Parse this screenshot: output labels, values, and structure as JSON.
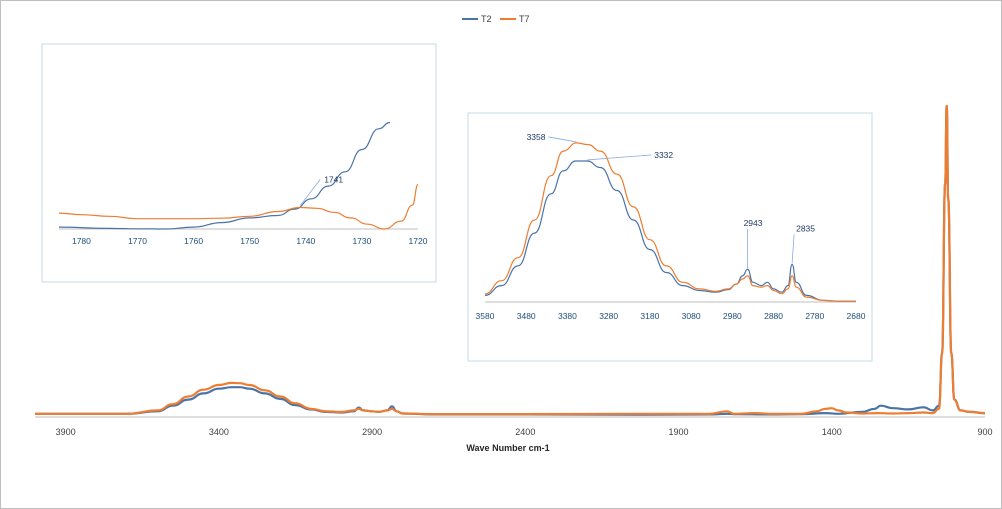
{
  "colors": {
    "T2": "#4a73a8",
    "T7": "#ed7d31",
    "axis": "#bfbfbf",
    "inset_border": "#c5dbe6"
  },
  "legend": {
    "placement": "top-center",
    "entries": [
      "T2",
      "T7"
    ]
  },
  "chart_data": [
    {
      "id": "main",
      "type": "line",
      "xlabel": "Wave Number cm-1",
      "ylabel": "",
      "title": "",
      "xlim": [
        4000,
        900
      ],
      "ylim": [
        0,
        1.0
      ],
      "x_reversed": true,
      "x_ticks": [
        3900,
        3400,
        2900,
        2400,
        1900,
        1400,
        900
      ],
      "grid": false,
      "series": [
        {
          "name": "T2",
          "points": [
            [
              4000,
              0.004
            ],
            [
              3800,
              0.004
            ],
            [
              3700,
              0.004
            ],
            [
              3600,
              0.012
            ],
            [
              3550,
              0.03
            ],
            [
              3500,
              0.05
            ],
            [
              3450,
              0.07
            ],
            [
              3400,
              0.085
            ],
            [
              3358,
              0.09
            ],
            [
              3332,
              0.09
            ],
            [
              3300,
              0.085
            ],
            [
              3250,
              0.07
            ],
            [
              3200,
              0.052
            ],
            [
              3150,
              0.032
            ],
            [
              3100,
              0.018
            ],
            [
              3050,
              0.01
            ],
            [
              3000,
              0.008
            ],
            [
              2960,
              0.012
            ],
            [
              2943,
              0.024
            ],
            [
              2930,
              0.015
            ],
            [
              2900,
              0.012
            ],
            [
              2880,
              0.01
            ],
            [
              2850,
              0.015
            ],
            [
              2835,
              0.028
            ],
            [
              2820,
              0.012
            ],
            [
              2800,
              0.005
            ],
            [
              2700,
              0.002
            ],
            [
              2400,
              0.002
            ],
            [
              2000,
              0.001
            ],
            [
              1800,
              0.002
            ],
            [
              1741,
              0.004
            ],
            [
              1720,
              0.003
            ],
            [
              1600,
              0.002
            ],
            [
              1500,
              0.003
            ],
            [
              1420,
              0.006
            ],
            [
              1380,
              0.004
            ],
            [
              1300,
              0.01
            ],
            [
              1260,
              0.02
            ],
            [
              1240,
              0.03
            ],
            [
              1200,
              0.022
            ],
            [
              1150,
              0.018
            ],
            [
              1100,
              0.025
            ],
            [
              1070,
              0.015
            ],
            [
              1050,
              0.03
            ],
            [
              1040,
              0.2
            ],
            [
              1030,
              0.75
            ],
            [
              1025,
              1.0
            ],
            [
              1020,
              0.7
            ],
            [
              1010,
              0.2
            ],
            [
              1000,
              0.05
            ],
            [
              980,
              0.015
            ],
            [
              950,
              0.01
            ],
            [
              900,
              0.006
            ]
          ]
        },
        {
          "name": "T7",
          "points": [
            [
              4000,
              0.004
            ],
            [
              3800,
              0.004
            ],
            [
              3700,
              0.004
            ],
            [
              3600,
              0.015
            ],
            [
              3550,
              0.035
            ],
            [
              3500,
              0.06
            ],
            [
              3450,
              0.082
            ],
            [
              3400,
              0.097
            ],
            [
              3358,
              0.104
            ],
            [
              3332,
              0.103
            ],
            [
              3300,
              0.097
            ],
            [
              3250,
              0.08
            ],
            [
              3200,
              0.06
            ],
            [
              3150,
              0.038
            ],
            [
              3100,
              0.02
            ],
            [
              3050,
              0.012
            ],
            [
              3000,
              0.01
            ],
            [
              2960,
              0.015
            ],
            [
              2943,
              0.02
            ],
            [
              2930,
              0.015
            ],
            [
              2900,
              0.012
            ],
            [
              2880,
              0.01
            ],
            [
              2850,
              0.015
            ],
            [
              2835,
              0.02
            ],
            [
              2820,
              0.012
            ],
            [
              2800,
              0.005
            ],
            [
              2700,
              0.003
            ],
            [
              2400,
              0.003
            ],
            [
              2000,
              0.004
            ],
            [
              1800,
              0.004
            ],
            [
              1741,
              0.012
            ],
            [
              1720,
              0.004
            ],
            [
              1650,
              0.006
            ],
            [
              1600,
              0.004
            ],
            [
              1500,
              0.004
            ],
            [
              1450,
              0.012
            ],
            [
              1420,
              0.02
            ],
            [
              1400,
              0.022
            ],
            [
              1380,
              0.015
            ],
            [
              1350,
              0.008
            ],
            [
              1300,
              0.005
            ],
            [
              1250,
              0.006
            ],
            [
              1200,
              0.005
            ],
            [
              1150,
              0.006
            ],
            [
              1100,
              0.008
            ],
            [
              1070,
              0.006
            ],
            [
              1050,
              0.02
            ],
            [
              1040,
              0.2
            ],
            [
              1030,
              0.75
            ],
            [
              1025,
              1.0
            ],
            [
              1020,
              0.7
            ],
            [
              1010,
              0.2
            ],
            [
              1000,
              0.05
            ],
            [
              980,
              0.015
            ],
            [
              950,
              0.01
            ],
            [
              900,
              0.006
            ]
          ]
        }
      ]
    },
    {
      "id": "inset_carbonyl",
      "type": "line",
      "xlim": [
        1784,
        1720
      ],
      "ylim": [
        0,
        1.0
      ],
      "x_reversed": true,
      "x_ticks": [
        1780,
        1770,
        1760,
        1750,
        1740,
        1730,
        1720
      ],
      "annotations": [
        {
          "text": "1741",
          "x": 1741
        }
      ],
      "series": [
        {
          "name": "T2",
          "points": [
            [
              1784,
              0.012
            ],
            [
              1775,
              0.004
            ],
            [
              1770,
              0.001
            ],
            [
              1765,
              0.0
            ],
            [
              1760,
              0.012
            ],
            [
              1755,
              0.04
            ],
            [
              1750,
              0.07
            ],
            [
              1745,
              0.085
            ],
            [
              1742,
              0.125
            ],
            [
              1739,
              0.19
            ],
            [
              1736,
              0.27
            ],
            [
              1733,
              0.36
            ],
            [
              1730,
              0.5
            ],
            [
              1727,
              0.63
            ],
            [
              1725,
              0.67
            ]
          ]
        },
        {
          "name": "T7",
          "points": [
            [
              1784,
              0.1
            ],
            [
              1780,
              0.09
            ],
            [
              1775,
              0.08
            ],
            [
              1770,
              0.065
            ],
            [
              1765,
              0.065
            ],
            [
              1760,
              0.065
            ],
            [
              1755,
              0.068
            ],
            [
              1750,
              0.08
            ],
            [
              1745,
              0.11
            ],
            [
              1741,
              0.135
            ],
            [
              1738,
              0.13
            ],
            [
              1735,
              0.105
            ],
            [
              1732,
              0.07
            ],
            [
              1729,
              0.03
            ],
            [
              1726,
              0.0
            ],
            [
              1723,
              0.05
            ],
            [
              1721,
              0.15
            ],
            [
              1720,
              0.28
            ]
          ]
        }
      ]
    },
    {
      "id": "inset_oh",
      "type": "line",
      "xlim": [
        3580,
        2680
      ],
      "ylim": [
        0,
        1.0
      ],
      "x_reversed": true,
      "x_ticks": [
        3580,
        3480,
        3380,
        3280,
        3180,
        3080,
        2980,
        2880,
        2780,
        2680
      ],
      "annotations": [
        {
          "text": "3358",
          "x": 3358,
          "series": "T7"
        },
        {
          "text": "3332",
          "x": 3332,
          "series": "T2"
        },
        {
          "text": "2943",
          "x": 2943
        },
        {
          "text": "2835",
          "x": 2835
        }
      ],
      "series": [
        {
          "name": "T2",
          "points": [
            [
              3580,
              0.04
            ],
            [
              3540,
              0.1
            ],
            [
              3500,
              0.22
            ],
            [
              3460,
              0.42
            ],
            [
              3420,
              0.66
            ],
            [
              3390,
              0.8
            ],
            [
              3360,
              0.86
            ],
            [
              3332,
              0.86
            ],
            [
              3300,
              0.82
            ],
            [
              3260,
              0.68
            ],
            [
              3220,
              0.5
            ],
            [
              3180,
              0.32
            ],
            [
              3140,
              0.18
            ],
            [
              3100,
              0.1
            ],
            [
              3060,
              0.07
            ],
            [
              3020,
              0.06
            ],
            [
              2990,
              0.075
            ],
            [
              2970,
              0.11
            ],
            [
              2955,
              0.16
            ],
            [
              2943,
              0.2
            ],
            [
              2930,
              0.12
            ],
            [
              2910,
              0.1
            ],
            [
              2895,
              0.12
            ],
            [
              2880,
              0.08
            ],
            [
              2860,
              0.06
            ],
            [
              2845,
              0.1
            ],
            [
              2835,
              0.23
            ],
            [
              2825,
              0.12
            ],
            [
              2800,
              0.04
            ],
            [
              2760,
              0.01
            ],
            [
              2720,
              0.005
            ],
            [
              2680,
              0.005
            ]
          ]
        },
        {
          "name": "T7",
          "points": [
            [
              3580,
              0.05
            ],
            [
              3540,
              0.13
            ],
            [
              3500,
              0.27
            ],
            [
              3460,
              0.5
            ],
            [
              3420,
              0.77
            ],
            [
              3390,
              0.92
            ],
            [
              3358,
              0.97
            ],
            [
              3330,
              0.96
            ],
            [
              3300,
              0.92
            ],
            [
              3260,
              0.78
            ],
            [
              3220,
              0.58
            ],
            [
              3180,
              0.38
            ],
            [
              3140,
              0.22
            ],
            [
              3100,
              0.12
            ],
            [
              3060,
              0.08
            ],
            [
              3020,
              0.065
            ],
            [
              2990,
              0.08
            ],
            [
              2970,
              0.11
            ],
            [
              2955,
              0.14
            ],
            [
              2943,
              0.16
            ],
            [
              2930,
              0.1
            ],
            [
              2910,
              0.09
            ],
            [
              2895,
              0.1
            ],
            [
              2880,
              0.07
            ],
            [
              2860,
              0.05
            ],
            [
              2845,
              0.08
            ],
            [
              2835,
              0.16
            ],
            [
              2825,
              0.09
            ],
            [
              2800,
              0.03
            ],
            [
              2760,
              0.01
            ],
            [
              2720,
              0.005
            ],
            [
              2680,
              0.005
            ]
          ]
        }
      ]
    }
  ]
}
